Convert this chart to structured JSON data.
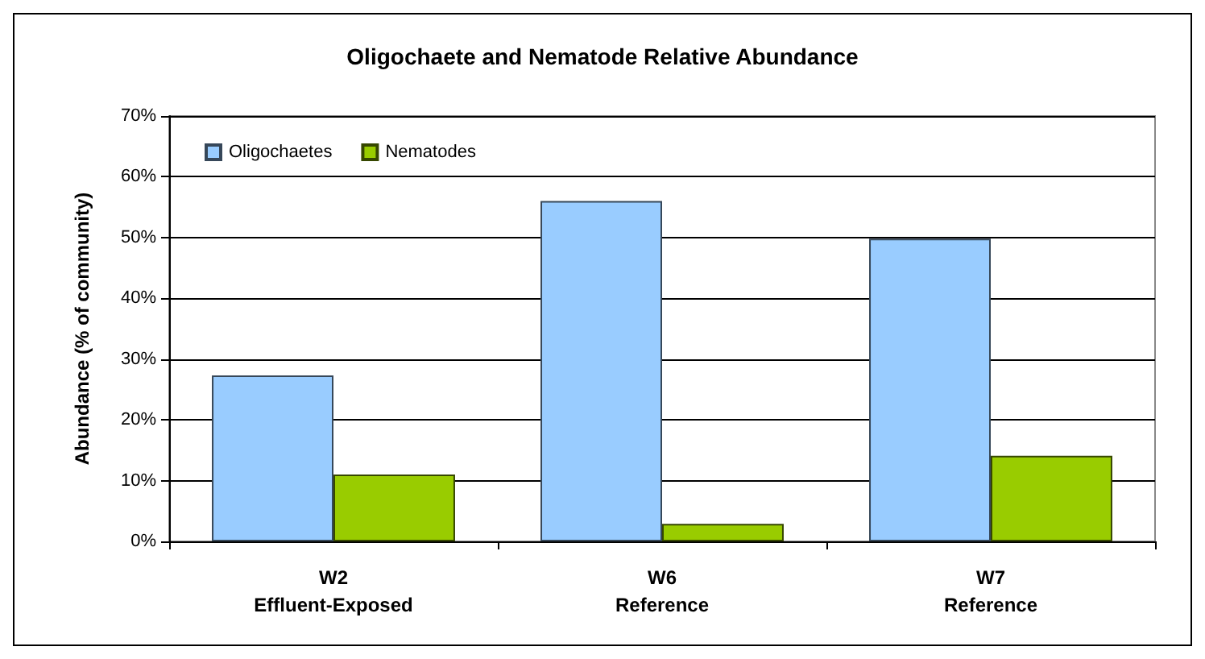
{
  "chart_data": {
    "type": "bar",
    "title": "Oligochaete and Nematode Relative Abundance",
    "ylabel": "Abundance (% of community)",
    "categories": [
      "W2\nEffluent-Exposed",
      "W6\nReference",
      "W7\nReference"
    ],
    "series": [
      {
        "name": "Oligochaetes",
        "color": "#99ccff",
        "values": [
          27.3,
          56.0,
          49.8
        ]
      },
      {
        "name": "Nematodes",
        "color": "#99cc00",
        "values": [
          11.0,
          2.9,
          14.1
        ]
      }
    ],
    "ylim": [
      0,
      70
    ],
    "yticks": [
      {
        "value": 0,
        "label": "0%"
      },
      {
        "value": 10,
        "label": "10%"
      },
      {
        "value": 20,
        "label": "20%"
      },
      {
        "value": 30,
        "label": "30%"
      },
      {
        "value": 40,
        "label": "40%"
      },
      {
        "value": 50,
        "label": "50%"
      },
      {
        "value": 60,
        "label": "60%"
      },
      {
        "value": 70,
        "label": "70%"
      }
    ],
    "grid": "y",
    "legend": "top left"
  }
}
